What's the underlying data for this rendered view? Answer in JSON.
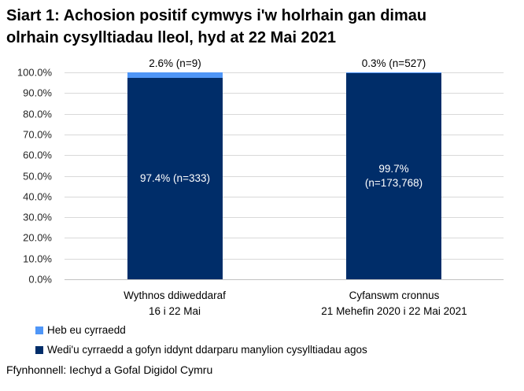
{
  "title_lines": [
    "Siart 1: Achosion positif cymwys i'w holrhain gan dimau",
    "olrhain cysylltiadau lleol, hyd at 22 Mai 2021"
  ],
  "source": "Ffynhonnell: Iechyd a Gofal Digidol Cymru",
  "colors": {
    "light_blue": "#4f96f7",
    "navy": "#002d69",
    "gridline": "#d9d9d9"
  },
  "chart_data": {
    "type": "bar",
    "subtype": "100%-stacked-column",
    "title": "Siart 1: Achosion positif cymwys i'w holrhain gan dimau olrhain cysylltiadau lleol, hyd at 22 Mai 2021",
    "categories": [
      "Wythnos ddiweddaraf 16 i 22 Mai",
      "Cyfanswm cronnus 21 Mehefin 2020 i 22 Mai 2021"
    ],
    "x_label_lines": [
      [
        "Wythnos ddiweddaraf",
        "16 i 22 Mai"
      ],
      [
        "Cyfanswm cronnus",
        "21 Mehefin 2020 i 22 Mai 2021"
      ]
    ],
    "series": [
      {
        "name": "Heb eu cyrraedd",
        "color": "#4f96f7",
        "values": [
          2.6,
          0.3
        ],
        "counts": [
          9,
          527
        ]
      },
      {
        "name": "Wedi'u cyrraedd a gofyn iddynt ddarparu manylion cysylltiadau agos",
        "color": "#002d69",
        "values": [
          97.4,
          99.7
        ],
        "counts": [
          333,
          173768
        ]
      }
    ],
    "above_bar_labels": [
      "2.6% (n=9)",
      "0.3% (n=527)"
    ],
    "inner_bar_labels": [
      [
        "97.4% (n=333)",
        ""
      ],
      [
        "99.7%",
        "(n=173,768)"
      ]
    ],
    "y_ticks": [
      "100.0%",
      "90.0%",
      "80.0%",
      "70.0%",
      "60.0%",
      "50.0%",
      "40.0%",
      "30.0%",
      "20.0%",
      "10.0%",
      "0.0%"
    ],
    "ylim": [
      0,
      100
    ],
    "grid": true,
    "legend_position": "bottom-left"
  },
  "legend": [
    {
      "label": "Heb eu cyrraedd",
      "color": "#4f96f7"
    },
    {
      "label": "Wedi'u cyrraedd a gofyn iddynt ddarparu manylion cysylltiadau agos",
      "color": "#002d69"
    }
  ]
}
